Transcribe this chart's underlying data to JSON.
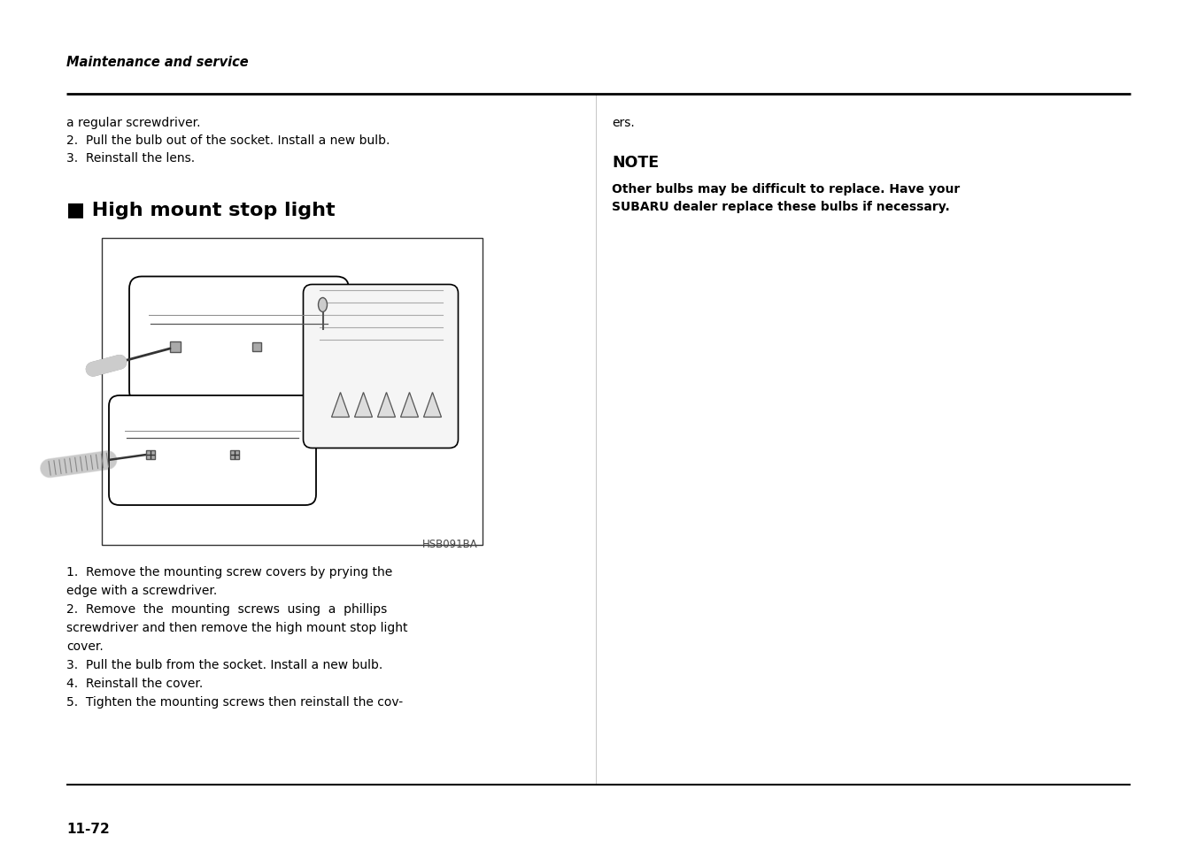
{
  "page_number": "11-72",
  "header_text": "Maintenance and service",
  "background_color": "#ffffff",
  "text_color": "#000000",
  "top_left_lines": [
    "a regular screwdriver.",
    "2.  Pull the bulb out of the socket. Install a new bulb.",
    "3.  Reinstall the lens."
  ],
  "top_right_lines": [
    "ers."
  ],
  "note_title": "NOTE",
  "note_body_line1": "Other bulbs may be difficult to replace. Have your",
  "note_body_line2": "SUBARU dealer replace these bulbs if necessary.",
  "section_title": "■ High mount stop light",
  "image_label": "HSB091BA",
  "bottom_left_lines": [
    "1.  Remove the mounting screw covers by prying the",
    "edge with a screwdriver.",
    "2.  Remove  the  mounting  screws  using  a  phillips",
    "screwdriver and then remove the high mount stop light",
    "cover.",
    "3.  Pull the bulb from the socket. Install a new bulb.",
    "4.  Reinstall the cover.",
    "5.  Tighten the mounting screws then reinstall the cov-"
  ],
  "figsize": [
    13.52,
    9.54
  ],
  "dpi": 100
}
